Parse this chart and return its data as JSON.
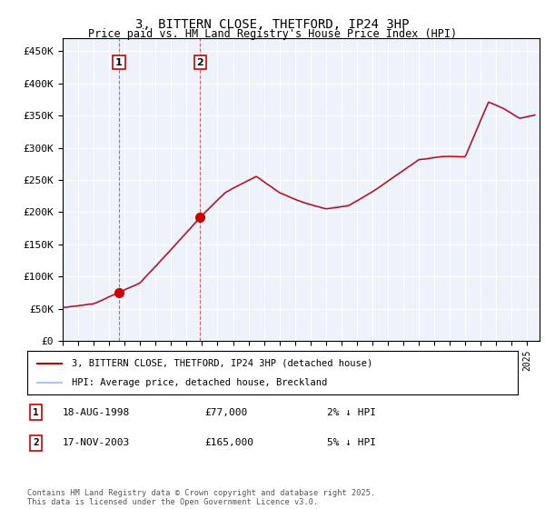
{
  "title": "3, BITTERN CLOSE, THETFORD, IP24 3HP",
  "subtitle": "Price paid vs. HM Land Registry's House Price Index (HPI)",
  "ylabel_vals": [
    0,
    50000,
    100000,
    150000,
    200000,
    250000,
    300000,
    350000,
    400000,
    450000
  ],
  "ylim": [
    0,
    470000
  ],
  "xlim_start": 1995.0,
  "xlim_end": 2025.8,
  "legend_line1": "3, BITTERN CLOSE, THETFORD, IP24 3HP (detached house)",
  "legend_line2": "HPI: Average price, detached house, Breckland",
  "marker1_date": "18-AUG-1998",
  "marker1_price": "£77,000",
  "marker1_hpi": "2% ↓ HPI",
  "marker1_year": 1998.63,
  "marker1_value": 77000,
  "marker2_date": "17-NOV-2003",
  "marker2_price": "£165,000",
  "marker2_hpi": "5% ↓ HPI",
  "marker2_year": 2003.88,
  "marker2_value": 165000,
  "footer": "Contains HM Land Registry data © Crown copyright and database right 2025.\nThis data is licensed under the Open Government Licence v3.0.",
  "hpi_color": "#aac8f8",
  "price_color": "#cc0000",
  "marker_color": "#cc0000",
  "vline_color": "#cc0000",
  "background_color": "#eef2fb",
  "grid_color": "#ffffff"
}
